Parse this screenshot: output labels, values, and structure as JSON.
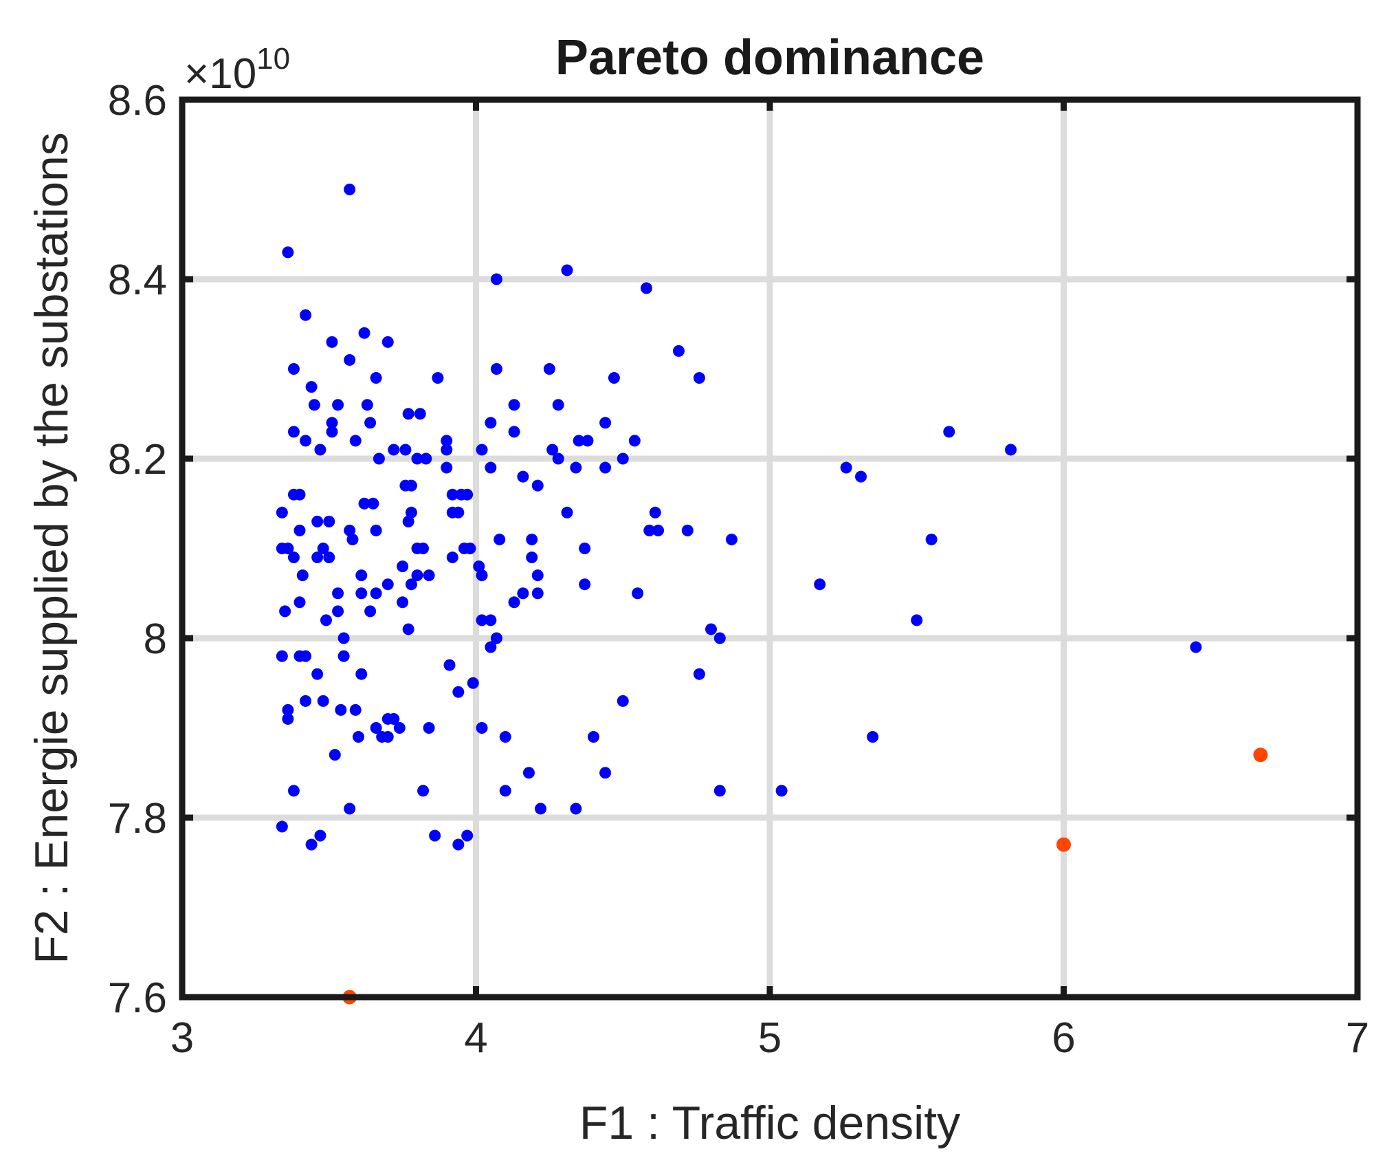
{
  "chart_data": {
    "type": "scatter",
    "title": "Pareto dominance",
    "xlabel": "F1 : Traffic density",
    "ylabel": "F2 : Energie supplied by the substations",
    "y_exponent_label": "×10",
    "y_exponent_power": "10",
    "xlim": [
      3,
      7
    ],
    "ylim": [
      7.6,
      8.6
    ],
    "x_ticks": [
      3,
      4,
      5,
      6,
      7
    ],
    "y_ticks": [
      7.6,
      7.8,
      8,
      8.2,
      8.4,
      8.6
    ],
    "x_tick_labels": [
      "3",
      "4",
      "5",
      "6",
      "7"
    ],
    "y_tick_labels": [
      "7.6",
      "7.8",
      "8",
      "8.2",
      "8.4",
      "8.6"
    ],
    "grid": true,
    "colors": {
      "dominated": "#0000ff",
      "pareto": "#ff4500"
    },
    "series": [
      {
        "color": "#0000ff",
        "points": [
          [
            3.57,
            8.5
          ],
          [
            3.36,
            8.43
          ],
          [
            4.31,
            8.41
          ],
          [
            4.07,
            8.4
          ],
          [
            4.58,
            8.39
          ],
          [
            3.42,
            8.36
          ],
          [
            3.62,
            8.34
          ],
          [
            3.51,
            8.33
          ],
          [
            3.7,
            8.33
          ],
          [
            4.69,
            8.32
          ],
          [
            3.38,
            8.3
          ],
          [
            3.57,
            8.31
          ],
          [
            4.07,
            8.3
          ],
          [
            4.25,
            8.3
          ],
          [
            3.66,
            8.29
          ],
          [
            3.87,
            8.29
          ],
          [
            4.47,
            8.29
          ],
          [
            4.76,
            8.29
          ],
          [
            3.44,
            8.28
          ],
          [
            3.45,
            8.26
          ],
          [
            3.53,
            8.26
          ],
          [
            3.63,
            8.26
          ],
          [
            4.13,
            8.26
          ],
          [
            4.28,
            8.26
          ],
          [
            3.81,
            8.25
          ],
          [
            3.77,
            8.25
          ],
          [
            3.51,
            8.24
          ],
          [
            4.05,
            8.24
          ],
          [
            3.64,
            8.24
          ],
          [
            3.38,
            8.23
          ],
          [
            3.51,
            8.23
          ],
          [
            3.42,
            8.22
          ],
          [
            3.59,
            8.22
          ],
          [
            4.13,
            8.23
          ],
          [
            4.44,
            8.24
          ],
          [
            5.61,
            8.23
          ],
          [
            3.9,
            8.22
          ],
          [
            4.35,
            8.22
          ],
          [
            4.38,
            8.22
          ],
          [
            4.54,
            8.22
          ],
          [
            3.47,
            8.21
          ],
          [
            3.9,
            8.21
          ],
          [
            4.02,
            8.21
          ],
          [
            4.26,
            8.21
          ],
          [
            3.72,
            8.21
          ],
          [
            3.76,
            8.21
          ],
          [
            3.8,
            8.2
          ],
          [
            3.83,
            8.2
          ],
          [
            3.67,
            8.2
          ],
          [
            4.28,
            8.2
          ],
          [
            4.5,
            8.2
          ],
          [
            5.82,
            8.21
          ],
          [
            3.9,
            8.19
          ],
          [
            4.05,
            8.19
          ],
          [
            4.34,
            8.19
          ],
          [
            4.44,
            8.19
          ],
          [
            5.26,
            8.19
          ],
          [
            4.16,
            8.18
          ],
          [
            3.78,
            8.17
          ],
          [
            3.76,
            8.17
          ],
          [
            4.21,
            8.17
          ],
          [
            5.31,
            8.18
          ],
          [
            3.38,
            8.16
          ],
          [
            3.92,
            8.16
          ],
          [
            3.95,
            8.16
          ],
          [
            3.97,
            8.16
          ],
          [
            3.4,
            8.16
          ],
          [
            3.62,
            8.15
          ],
          [
            3.65,
            8.15
          ],
          [
            3.34,
            8.14
          ],
          [
            3.92,
            8.14
          ],
          [
            4.31,
            8.14
          ],
          [
            3.94,
            8.14
          ],
          [
            3.78,
            8.14
          ],
          [
            3.77,
            8.13
          ],
          [
            3.46,
            8.13
          ],
          [
            3.5,
            8.13
          ],
          [
            4.61,
            8.14
          ],
          [
            4.59,
            8.12
          ],
          [
            4.62,
            8.12
          ],
          [
            4.72,
            8.12
          ],
          [
            3.4,
            8.12
          ],
          [
            3.57,
            8.12
          ],
          [
            3.66,
            8.12
          ],
          [
            3.58,
            8.11
          ],
          [
            4.08,
            8.11
          ],
          [
            4.19,
            8.11
          ],
          [
            4.87,
            8.11
          ],
          [
            3.96,
            8.1
          ],
          [
            3.82,
            8.1
          ],
          [
            3.48,
            8.1
          ],
          [
            3.5,
            8.09
          ],
          [
            3.34,
            8.1
          ],
          [
            3.36,
            8.1
          ],
          [
            3.8,
            8.1
          ],
          [
            3.46,
            8.09
          ],
          [
            3.98,
            8.1
          ],
          [
            4.37,
            8.1
          ],
          [
            5.55,
            8.11
          ],
          [
            3.38,
            8.09
          ],
          [
            3.92,
            8.09
          ],
          [
            4.01,
            8.08
          ],
          [
            4.19,
            8.09
          ],
          [
            3.75,
            8.08
          ],
          [
            3.8,
            8.07
          ],
          [
            3.41,
            8.07
          ],
          [
            3.61,
            8.07
          ],
          [
            3.84,
            8.07
          ],
          [
            4.02,
            8.07
          ],
          [
            4.21,
            8.07
          ],
          [
            3.78,
            8.06
          ],
          [
            3.7,
            8.06
          ],
          [
            4.16,
            8.05
          ],
          [
            4.21,
            8.05
          ],
          [
            4.37,
            8.06
          ],
          [
            5.17,
            8.06
          ],
          [
            3.53,
            8.05
          ],
          [
            3.61,
            8.05
          ],
          [
            3.66,
            8.05
          ],
          [
            4.55,
            8.05
          ],
          [
            3.4,
            8.04
          ],
          [
            3.75,
            8.04
          ],
          [
            4.13,
            8.04
          ],
          [
            3.35,
            8.03
          ],
          [
            3.49,
            8.02
          ],
          [
            3.53,
            8.03
          ],
          [
            3.64,
            8.03
          ],
          [
            4.05,
            8.02
          ],
          [
            4.02,
            8.02
          ],
          [
            5.5,
            8.02
          ],
          [
            3.77,
            8.01
          ],
          [
            4.8,
            8.01
          ],
          [
            4.83,
            8.0
          ],
          [
            3.55,
            8.0
          ],
          [
            4.07,
            8.0
          ],
          [
            6.45,
            7.99
          ],
          [
            3.34,
            7.98
          ],
          [
            3.42,
            7.98
          ],
          [
            3.4,
            7.98
          ],
          [
            3.55,
            7.98
          ],
          [
            4.05,
            7.99
          ],
          [
            3.91,
            7.97
          ],
          [
            3.46,
            7.96
          ],
          [
            3.61,
            7.96
          ],
          [
            4.76,
            7.96
          ],
          [
            3.99,
            7.95
          ],
          [
            3.94,
            7.94
          ],
          [
            3.42,
            7.93
          ],
          [
            3.48,
            7.93
          ],
          [
            4.5,
            7.93
          ],
          [
            3.36,
            7.92
          ],
          [
            3.36,
            7.91
          ],
          [
            3.54,
            7.92
          ],
          [
            3.59,
            7.92
          ],
          [
            3.7,
            7.91
          ],
          [
            3.72,
            7.91
          ],
          [
            3.66,
            7.9
          ],
          [
            3.74,
            7.9
          ],
          [
            3.84,
            7.9
          ],
          [
            4.02,
            7.9
          ],
          [
            3.7,
            7.89
          ],
          [
            3.6,
            7.89
          ],
          [
            3.68,
            7.89
          ],
          [
            4.1,
            7.89
          ],
          [
            4.4,
            7.89
          ],
          [
            5.35,
            7.89
          ],
          [
            3.52,
            7.87
          ],
          [
            4.18,
            7.85
          ],
          [
            4.44,
            7.85
          ],
          [
            3.38,
            7.83
          ],
          [
            3.82,
            7.83
          ],
          [
            4.1,
            7.83
          ],
          [
            4.83,
            7.83
          ],
          [
            5.04,
            7.83
          ],
          [
            3.57,
            7.81
          ],
          [
            4.22,
            7.81
          ],
          [
            4.34,
            7.81
          ],
          [
            3.34,
            7.79
          ],
          [
            3.86,
            7.78
          ],
          [
            3.47,
            7.78
          ],
          [
            3.97,
            7.78
          ],
          [
            3.44,
            7.77
          ],
          [
            3.94,
            7.77
          ]
        ]
      },
      {
        "color": "#ff4500",
        "points": [
          [
            3.57,
            7.6
          ],
          [
            6.0,
            7.77
          ],
          [
            6.67,
            7.87
          ]
        ]
      }
    ]
  }
}
